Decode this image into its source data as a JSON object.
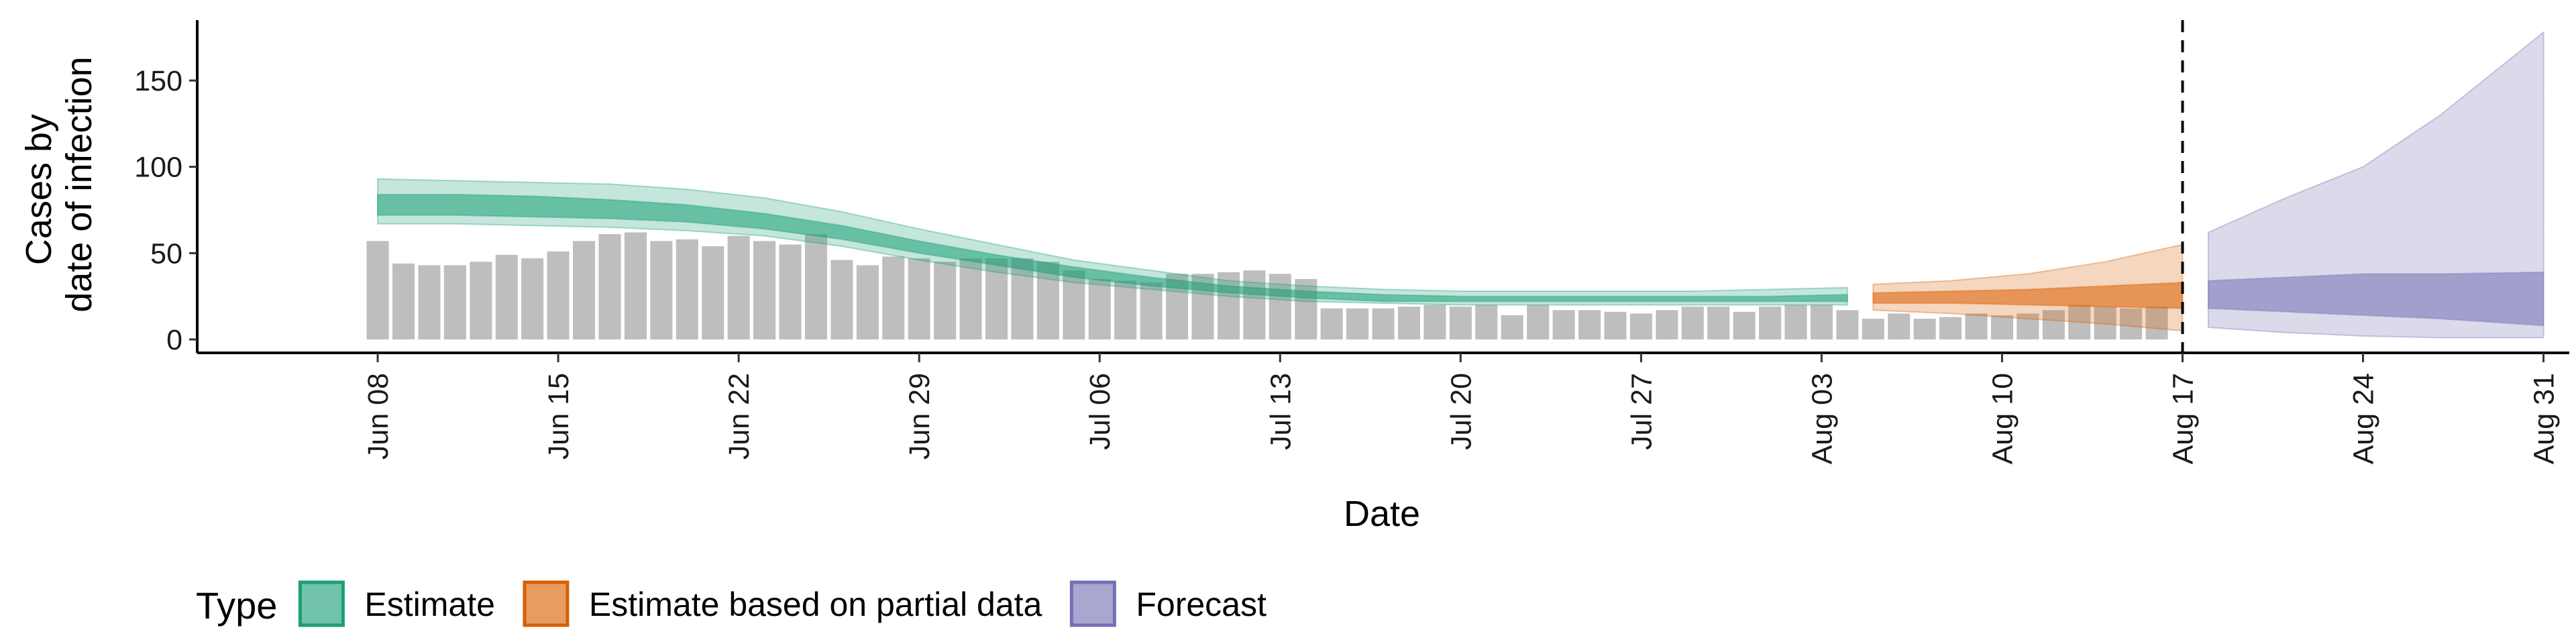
{
  "chart_data": {
    "type": "area",
    "xlabel": "Date",
    "ylabel_lines": [
      "Cases by",
      "date of infection"
    ],
    "ylim": [
      0,
      185
    ],
    "y_ticks": [
      0,
      50,
      100,
      150
    ],
    "x_range": [
      "2020-06-01",
      "2020-09-01"
    ],
    "x_ticks": [
      {
        "date": "2020-06-08",
        "label": "Jun 08"
      },
      {
        "date": "2020-06-15",
        "label": "Jun 15"
      },
      {
        "date": "2020-06-22",
        "label": "Jun 22"
      },
      {
        "date": "2020-06-29",
        "label": "Jun 29"
      },
      {
        "date": "2020-07-06",
        "label": "Jul 06"
      },
      {
        "date": "2020-07-13",
        "label": "Jul 13"
      },
      {
        "date": "2020-07-20",
        "label": "Jul 20"
      },
      {
        "date": "2020-07-27",
        "label": "Jul 27"
      },
      {
        "date": "2020-08-03",
        "label": "Aug 03"
      },
      {
        "date": "2020-08-10",
        "label": "Aug 10"
      },
      {
        "date": "2020-08-17",
        "label": "Aug 17"
      },
      {
        "date": "2020-08-24",
        "label": "Aug 24"
      },
      {
        "date": "2020-08-31",
        "label": "Aug 31"
      }
    ],
    "forecast_date": "2020-08-17",
    "bars": {
      "color": "#bebebe",
      "start_date": "2020-06-08",
      "values": [
        57,
        44,
        43,
        43,
        45,
        49,
        47,
        51,
        57,
        61,
        62,
        57,
        58,
        54,
        60,
        57,
        55,
        61,
        46,
        43,
        48,
        47,
        45,
        47,
        47,
        47,
        45,
        40,
        35,
        34,
        33,
        38,
        38,
        39,
        40,
        38,
        35,
        18,
        18,
        18,
        19,
        20,
        19,
        20,
        14,
        20,
        17,
        17,
        16,
        15,
        17,
        19,
        19,
        16,
        19,
        20,
        20,
        17,
        12,
        15,
        12,
        13,
        15,
        14,
        15,
        17,
        20,
        19,
        18,
        19
      ]
    },
    "series": [
      {
        "name": "Estimate",
        "color": "#1b9e77",
        "dates": [
          "2020-06-08",
          "2020-06-11",
          "2020-06-14",
          "2020-06-17",
          "2020-06-20",
          "2020-06-23",
          "2020-06-26",
          "2020-06-29",
          "2020-07-02",
          "2020-07-05",
          "2020-07-08",
          "2020-07-11",
          "2020-07-14",
          "2020-07-17",
          "2020-07-20",
          "2020-07-23",
          "2020-07-26",
          "2020-07-29",
          "2020-08-01",
          "2020-08-04"
        ],
        "lower90": [
          67,
          67,
          66,
          65,
          63,
          60,
          54,
          46,
          39,
          33,
          29,
          25,
          22,
          21,
          20,
          20,
          20,
          20,
          20,
          20
        ],
        "lower50": [
          72,
          72,
          71,
          70,
          68,
          64,
          58,
          50,
          43,
          36,
          31,
          27,
          24,
          22,
          22,
          22,
          22,
          22,
          22,
          22
        ],
        "upper50": [
          84,
          84,
          83,
          81,
          78,
          73,
          66,
          57,
          49,
          42,
          36,
          31,
          28,
          26,
          25,
          25,
          25,
          25,
          25,
          26
        ],
        "upper90": [
          93,
          92,
          91,
          90,
          87,
          82,
          74,
          64,
          55,
          46,
          40,
          34,
          31,
          29,
          28,
          28,
          28,
          28,
          29,
          30
        ]
      },
      {
        "name": "Estimate based on partial data",
        "color": "#d95f02",
        "dates": [
          "2020-08-05",
          "2020-08-08",
          "2020-08-11",
          "2020-08-14",
          "2020-08-17"
        ],
        "lower90": [
          17,
          15,
          12,
          9,
          5
        ],
        "lower50": [
          21,
          21,
          20,
          19,
          18
        ],
        "upper50": [
          27,
          28,
          29,
          31,
          33
        ],
        "upper90": [
          32,
          34,
          38,
          45,
          55
        ]
      },
      {
        "name": "Forecast",
        "color": "#7570b3",
        "dates": [
          "2020-08-18",
          "2020-08-21",
          "2020-08-24",
          "2020-08-27",
          "2020-08-31"
        ],
        "lower90": [
          7,
          4,
          2,
          1,
          1
        ],
        "lower50": [
          18,
          16,
          14,
          12,
          8
        ],
        "upper50": [
          34,
          36,
          38,
          38,
          39
        ],
        "upper90": [
          62,
          82,
          100,
          130,
          178
        ]
      }
    ],
    "legend": {
      "title": "Type",
      "position": "bottom",
      "items": [
        {
          "label": "Estimate",
          "color": "#1b9e77"
        },
        {
          "label": "Estimate based on partial data",
          "color": "#d95f02"
        },
        {
          "label": "Forecast",
          "color": "#7570b3"
        }
      ]
    },
    "grid": false
  }
}
